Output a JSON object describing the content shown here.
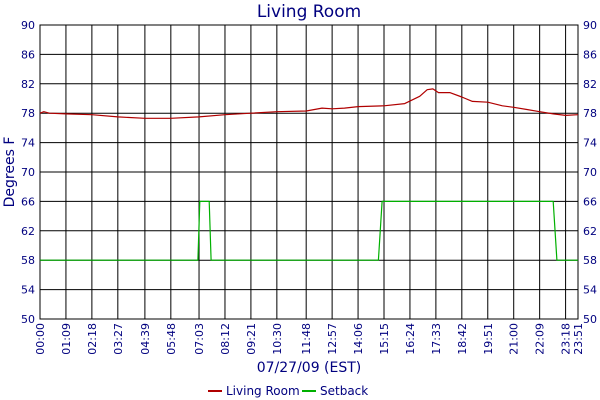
{
  "chart_data": {
    "type": "line",
    "title": "Living Room",
    "xlabel": "07/27/09 (EST)",
    "ylabel": "Degrees F",
    "ylim": [
      50,
      90
    ],
    "y_ticks": [
      50,
      54,
      58,
      62,
      66,
      70,
      74,
      78,
      82,
      86,
      90
    ],
    "x_unit": "time of day (minutes)",
    "xlim": [
      "00:00",
      "23:51"
    ],
    "x_ticks": [
      "00:00",
      "01:09",
      "02:18",
      "03:27",
      "04:39",
      "05:48",
      "07:03",
      "08:12",
      "09:21",
      "10:30",
      "11:48",
      "12:57",
      "14:06",
      "15:15",
      "16:24",
      "17:33",
      "18:42",
      "19:51",
      "21:00",
      "22:09",
      "23:18",
      "23:51"
    ],
    "grid": true,
    "legend_position": "bottom-center",
    "series": [
      {
        "name": "Living Room",
        "color": "#b00000",
        "points": [
          [
            "00:00",
            78.0
          ],
          [
            "00:10",
            78.2
          ],
          [
            "00:25",
            78.0
          ],
          [
            "01:09",
            77.9
          ],
          [
            "02:18",
            77.8
          ],
          [
            "03:27",
            77.5
          ],
          [
            "04:39",
            77.3
          ],
          [
            "05:48",
            77.3
          ],
          [
            "07:03",
            77.5
          ],
          [
            "08:12",
            77.8
          ],
          [
            "09:21",
            78.0
          ],
          [
            "10:30",
            78.2
          ],
          [
            "11:48",
            78.3
          ],
          [
            "12:30",
            78.7
          ],
          [
            "12:57",
            78.6
          ],
          [
            "13:30",
            78.7
          ],
          [
            "14:06",
            78.9
          ],
          [
            "15:15",
            79.0
          ],
          [
            "16:10",
            79.3
          ],
          [
            "16:50",
            80.3
          ],
          [
            "17:10",
            81.2
          ],
          [
            "17:25",
            81.3
          ],
          [
            "17:40",
            80.8
          ],
          [
            "18:10",
            80.8
          ],
          [
            "18:42",
            80.2
          ],
          [
            "19:10",
            79.6
          ],
          [
            "19:51",
            79.5
          ],
          [
            "20:30",
            79.0
          ],
          [
            "21:00",
            78.8
          ],
          [
            "21:35",
            78.5
          ],
          [
            "22:09",
            78.2
          ],
          [
            "22:45",
            77.9
          ],
          [
            "23:18",
            77.7
          ],
          [
            "23:51",
            77.8
          ]
        ]
      },
      {
        "name": "Setback",
        "color": "#00b000",
        "points": [
          [
            "00:00",
            58
          ],
          [
            "07:00",
            58
          ],
          [
            "07:05",
            66
          ],
          [
            "07:30",
            66
          ],
          [
            "07:35",
            58
          ],
          [
            "15:00",
            58
          ],
          [
            "15:10",
            66
          ],
          [
            "22:45",
            66
          ],
          [
            "22:55",
            58
          ],
          [
            "23:51",
            58
          ]
        ]
      }
    ]
  }
}
